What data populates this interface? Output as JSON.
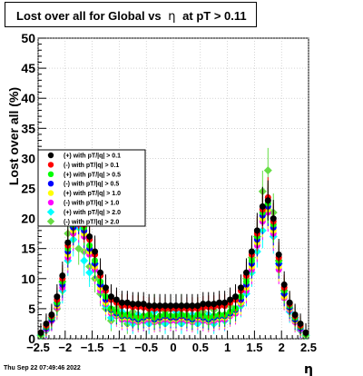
{
  "chart_data": {
    "type": "scatter",
    "title": "Lost over all for Global vs η at pT > 0.11",
    "title_prefix": "Lost over all for Global vs",
    "title_eta": "η",
    "title_suffix": "at pT > 0.11",
    "xlabel": "η",
    "ylabel": "Lost over all (%)",
    "xlim": [
      -2.5,
      2.5
    ],
    "ylim": [
      0,
      50
    ],
    "xticks": [
      "−2.5",
      "−2",
      "−1.5",
      "−1",
      "−0.5",
      "0",
      "0.5",
      "1",
      "1.5",
      "2",
      "2.5"
    ],
    "xtick_values": [
      -2.5,
      -2,
      -1.5,
      -1,
      -0.5,
      0,
      0.5,
      1,
      1.5,
      2,
      2.5
    ],
    "yticks": [
      "0",
      "5",
      "10",
      "15",
      "20",
      "25",
      "30",
      "35",
      "40",
      "45",
      "50"
    ],
    "ytick_values": [
      0,
      5,
      10,
      15,
      20,
      25,
      30,
      35,
      40,
      45,
      50
    ],
    "grid": true,
    "legend_position": "middle-left",
    "series": [
      {
        "name": "(+) with pT/|q| > 0.1",
        "color": "#000000",
        "marker": "circle",
        "x": [
          -2.45,
          -2.35,
          -2.25,
          -2.15,
          -2.05,
          -1.95,
          -1.85,
          -1.75,
          -1.65,
          -1.55,
          -1.45,
          -1.35,
          -1.25,
          -1.15,
          -1.05,
          -0.95,
          -0.85,
          -0.75,
          -0.65,
          -0.55,
          -0.45,
          -0.35,
          -0.25,
          -0.15,
          -0.05,
          0.05,
          0.15,
          0.25,
          0.35,
          0.45,
          0.55,
          0.65,
          0.75,
          0.85,
          0.95,
          1.05,
          1.15,
          1.25,
          1.35,
          1.45,
          1.55,
          1.65,
          1.75,
          1.85,
          1.95,
          2.05,
          2.15,
          2.25,
          2.35,
          2.45
        ],
        "y": [
          1.0,
          2.5,
          4.0,
          7.0,
          10.5,
          16.0,
          20.5,
          22.0,
          19.5,
          17.0,
          14.5,
          11.0,
          8.5,
          7.0,
          6.5,
          6.0,
          6.0,
          5.8,
          5.8,
          5.8,
          5.5,
          5.5,
          5.5,
          5.5,
          5.5,
          5.5,
          5.5,
          5.5,
          5.5,
          5.5,
          5.8,
          5.8,
          5.8,
          6.0,
          6.0,
          6.5,
          7.0,
          8.5,
          11.0,
          14.5,
          18.0,
          22.0,
          23.0,
          20.0,
          14.0,
          9.0,
          6.0,
          4.0,
          2.5,
          1.0
        ]
      },
      {
        "name": "(-) with pT/|q| > 0.1",
        "color": "#ff0000",
        "marker": "circle",
        "x": [
          -2.45,
          -2.35,
          -2.25,
          -2.15,
          -2.05,
          -1.95,
          -1.85,
          -1.75,
          -1.65,
          -1.55,
          -1.45,
          -1.35,
          -1.25,
          -1.15,
          -1.05,
          -0.95,
          -0.85,
          -0.75,
          -0.65,
          -0.55,
          -0.45,
          -0.35,
          -0.25,
          -0.15,
          -0.05,
          0.05,
          0.15,
          0.25,
          0.35,
          0.45,
          0.55,
          0.65,
          0.75,
          0.85,
          0.95,
          1.05,
          1.15,
          1.25,
          1.35,
          1.45,
          1.55,
          1.65,
          1.75,
          1.85,
          1.95,
          2.05,
          2.15,
          2.25,
          2.35,
          2.45
        ],
        "y": [
          1.0,
          2.2,
          3.8,
          6.5,
          10.0,
          15.5,
          20.0,
          21.5,
          19.0,
          16.5,
          14.0,
          10.5,
          8.0,
          6.5,
          6.0,
          5.5,
          5.5,
          5.3,
          5.3,
          5.2,
          5.0,
          5.0,
          5.0,
          5.0,
          5.0,
          5.0,
          5.0,
          5.0,
          5.0,
          5.0,
          5.2,
          5.3,
          5.3,
          5.5,
          5.5,
          6.0,
          6.5,
          8.0,
          10.5,
          14.0,
          17.5,
          21.5,
          23.5,
          19.5,
          13.5,
          8.5,
          5.8,
          3.8,
          2.2,
          1.0
        ]
      },
      {
        "name": "(+) with pT/|q| > 0.5",
        "color": "#00ff00",
        "marker": "circle",
        "x": [
          -2.45,
          -2.35,
          -2.25,
          -2.15,
          -2.05,
          -1.95,
          -1.85,
          -1.75,
          -1.65,
          -1.55,
          -1.45,
          -1.35,
          -1.25,
          -1.15,
          -1.05,
          -0.95,
          -0.85,
          -0.75,
          -0.65,
          -0.55,
          -0.45,
          -0.35,
          -0.25,
          -0.15,
          -0.05,
          0.05,
          0.15,
          0.25,
          0.35,
          0.45,
          0.55,
          0.65,
          0.75,
          0.85,
          0.95,
          1.05,
          1.15,
          1.25,
          1.35,
          1.45,
          1.55,
          1.65,
          1.75,
          1.85,
          1.95,
          2.05,
          2.15,
          2.25,
          2.35,
          2.45
        ],
        "y": [
          0.8,
          2.0,
          3.5,
          6.0,
          9.5,
          15.0,
          19.0,
          21.0,
          18.5,
          15.5,
          13.0,
          9.5,
          7.0,
          5.0,
          4.5,
          4.0,
          4.0,
          3.8,
          3.5,
          3.8,
          4.0,
          3.5,
          3.8,
          4.0,
          3.8,
          3.8,
          4.0,
          3.8,
          3.5,
          4.0,
          3.8,
          3.5,
          3.8,
          4.0,
          4.0,
          4.5,
          5.0,
          7.0,
          9.5,
          13.0,
          17.0,
          21.0,
          22.5,
          19.0,
          13.0,
          8.0,
          5.5,
          3.5,
          2.0,
          0.8
        ]
      },
      {
        "name": "(-) with pT/|q| > 0.5",
        "color": "#0000ff",
        "marker": "circle",
        "x": [
          -2.45,
          -2.35,
          -2.25,
          -2.15,
          -2.05,
          -1.95,
          -1.85,
          -1.75,
          -1.65,
          -1.55,
          -1.45,
          -1.35,
          -1.25,
          -1.15,
          -1.05,
          -0.95,
          -0.85,
          -0.75,
          -0.65,
          -0.55,
          -0.45,
          -0.35,
          -0.25,
          -0.15,
          -0.05,
          0.05,
          0.15,
          0.25,
          0.35,
          0.45,
          0.55,
          0.65,
          0.75,
          0.85,
          0.95,
          1.05,
          1.15,
          1.25,
          1.35,
          1.45,
          1.55,
          1.65,
          1.75,
          1.85,
          1.95,
          2.05,
          2.15,
          2.25,
          2.35,
          2.45
        ],
        "y": [
          0.8,
          1.8,
          3.2,
          5.8,
          9.0,
          14.5,
          18.5,
          20.5,
          18.0,
          15.0,
          12.5,
          9.0,
          6.5,
          4.8,
          4.2,
          3.8,
          3.8,
          3.5,
          3.2,
          3.5,
          3.8,
          3.2,
          3.5,
          3.8,
          3.5,
          3.5,
          3.8,
          3.5,
          3.2,
          3.8,
          3.5,
          3.2,
          3.5,
          3.8,
          3.8,
          4.2,
          4.8,
          6.5,
          9.0,
          12.5,
          16.5,
          20.5,
          22.0,
          18.5,
          12.5,
          7.5,
          5.2,
          3.2,
          1.8,
          0.8
        ]
      },
      {
        "name": "(+) with pT/|q| > 1.0",
        "color": "#ffff00",
        "marker": "circle",
        "x": [
          -2.45,
          -2.35,
          -2.25,
          -2.15,
          -2.05,
          -1.95,
          -1.85,
          -1.75,
          -1.65,
          -1.55,
          -1.45,
          -1.35,
          -1.25,
          -1.15,
          -1.05,
          -0.95,
          -0.85,
          -0.75,
          -0.65,
          -0.55,
          -0.45,
          -0.35,
          -0.25,
          -0.15,
          -0.05,
          0.05,
          0.15,
          0.25,
          0.35,
          0.45,
          0.55,
          0.65,
          0.75,
          0.85,
          0.95,
          1.05,
          1.15,
          1.25,
          1.35,
          1.45,
          1.55,
          1.65,
          1.75,
          1.85,
          1.95,
          2.05,
          2.15,
          2.25,
          2.35,
          2.45
        ],
        "y": [
          0.7,
          1.8,
          3.3,
          5.5,
          9.0,
          14.0,
          18.0,
          19.5,
          17.5,
          14.5,
          12.0,
          8.5,
          6.0,
          4.5,
          4.0,
          3.5,
          3.5,
          3.3,
          3.0,
          3.3,
          3.5,
          3.0,
          3.3,
          3.5,
          3.3,
          3.3,
          3.5,
          3.3,
          3.0,
          3.5,
          3.3,
          3.0,
          3.3,
          3.5,
          3.5,
          4.0,
          4.5,
          6.0,
          8.5,
          12.0,
          16.0,
          20.0,
          21.5,
          18.0,
          12.0,
          7.0,
          5.0,
          3.0,
          1.8,
          0.7
        ]
      },
      {
        "name": "(-) with pT/|q| > 1.0",
        "color": "#ff00ff",
        "marker": "circle",
        "x": [
          -2.45,
          -2.35,
          -2.25,
          -2.15,
          -2.05,
          -1.95,
          -1.85,
          -1.75,
          -1.65,
          -1.55,
          -1.45,
          -1.35,
          -1.25,
          -1.15,
          -1.05,
          -0.95,
          -0.85,
          -0.75,
          -0.65,
          -0.55,
          -0.45,
          -0.35,
          -0.25,
          -0.15,
          -0.05,
          0.05,
          0.15,
          0.25,
          0.35,
          0.45,
          0.55,
          0.65,
          0.75,
          0.85,
          0.95,
          1.05,
          1.15,
          1.25,
          1.35,
          1.45,
          1.55,
          1.65,
          1.75,
          1.85,
          1.95,
          2.05,
          2.15,
          2.25,
          2.35,
          2.45
        ],
        "y": [
          0.7,
          1.6,
          3.0,
          5.2,
          8.5,
          13.5,
          17.5,
          19.0,
          17.0,
          14.0,
          11.5,
          8.0,
          5.8,
          4.2,
          3.8,
          3.2,
          3.2,
          3.0,
          2.8,
          3.0,
          3.2,
          2.8,
          3.0,
          3.2,
          3.0,
          3.0,
          3.2,
          3.0,
          2.8,
          3.2,
          3.0,
          2.8,
          3.0,
          3.2,
          3.2,
          3.8,
          4.2,
          5.8,
          8.0,
          11.5,
          15.5,
          19.5,
          21.0,
          17.5,
          11.5,
          6.8,
          4.8,
          2.8,
          1.6,
          0.7
        ]
      },
      {
        "name": "(+) with pT/|q| > 2.0",
        "color": "#00ffff",
        "marker": "diamond",
        "x": [
          -2.45,
          -2.35,
          -2.25,
          -2.15,
          -2.05,
          -1.95,
          -1.85,
          -1.75,
          -1.65,
          -1.55,
          -1.45,
          -1.35,
          -1.25,
          -1.15,
          -1.05,
          -0.95,
          -0.85,
          -0.75,
          -0.65,
          -0.55,
          -0.45,
          -0.35,
          -0.25,
          -0.15,
          -0.05,
          0.05,
          0.15,
          0.25,
          0.35,
          0.45,
          0.55,
          0.65,
          0.75,
          0.85,
          0.95,
          1.05,
          1.15,
          1.25,
          1.35,
          1.45,
          1.55,
          1.65,
          1.75,
          1.85,
          1.95,
          2.05,
          2.15,
          2.25,
          2.35,
          2.45
        ],
        "y": [
          0.6,
          1.5,
          3.5,
          6.0,
          8.0,
          13.0,
          16.5,
          18.5,
          13.0,
          11.0,
          12.5,
          9.0,
          5.5,
          3.5,
          4.0,
          4.5,
          3.0,
          2.5,
          4.0,
          3.0,
          2.5,
          4.5,
          3.0,
          2.5,
          3.5,
          4.5,
          2.5,
          3.0,
          4.0,
          2.5,
          3.5,
          4.0,
          2.5,
          3.5,
          3.0,
          4.0,
          5.0,
          5.5,
          7.5,
          11.0,
          14.5,
          18.0,
          21.5,
          17.0,
          12.5,
          7.5,
          4.5,
          3.5,
          1.5,
          0.6
        ]
      },
      {
        "name": "(-) with pT/|q| > 2.0",
        "color": "#66dd44",
        "marker": "diamond",
        "x": [
          -2.45,
          -2.35,
          -2.25,
          -2.15,
          -2.05,
          -1.95,
          -1.85,
          -1.75,
          -1.65,
          -1.55,
          -1.45,
          -1.35,
          -1.25,
          -1.15,
          -1.05,
          -0.95,
          -0.85,
          -0.75,
          -0.65,
          -0.55,
          -0.45,
          -0.35,
          -0.25,
          -0.15,
          -0.05,
          0.05,
          0.15,
          0.25,
          0.35,
          0.45,
          0.55,
          0.65,
          0.75,
          0.85,
          0.95,
          1.05,
          1.15,
          1.25,
          1.35,
          1.45,
          1.55,
          1.65,
          1.75,
          1.85,
          1.95,
          2.05,
          2.15,
          2.25,
          2.35,
          2.45
        ],
        "y": [
          0.5,
          1.4,
          3.0,
          5.0,
          9.5,
          17.5,
          18.5,
          15.0,
          14.5,
          12.0,
          10.0,
          7.5,
          5.0,
          3.0,
          5.0,
          5.5,
          2.5,
          4.5,
          5.5,
          3.0,
          4.0,
          5.5,
          2.8,
          4.5,
          5.0,
          3.0,
          5.5,
          4.0,
          3.0,
          5.0,
          4.5,
          3.0,
          4.8,
          4.0,
          3.5,
          5.5,
          5.0,
          6.0,
          10.0,
          13.5,
          17.0,
          24.5,
          28.0,
          21.0,
          13.0,
          8.0,
          5.0,
          3.0,
          1.4,
          0.5
        ]
      }
    ]
  },
  "footer": {
    "date": "Thu Sep 22 07:49:46 2022"
  }
}
